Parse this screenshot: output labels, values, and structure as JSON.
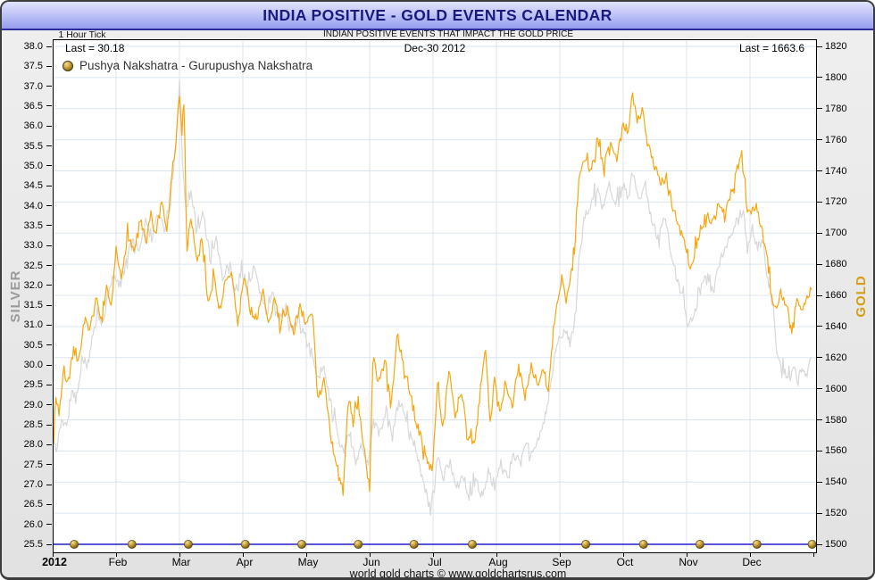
{
  "window": {
    "title": "INDIA POSITIVE - GOLD EVENTS CALENDAR"
  },
  "header": {
    "tick_interval": "1 Hour Tick",
    "subtitle": "INDIAN POSITIVE EVENTS THAT IMPACT THE GOLD PRICE"
  },
  "plot": {
    "silver_last": "Last = 30.18",
    "date_label": "Dec-30  2012",
    "gold_last": "Last = 1663.6"
  },
  "legend": {
    "label": "Pushya Nakshatra - Gurupushya Nakshatra",
    "marker": "gold-sphere"
  },
  "footer": {
    "credit": "world gold charts © www.goldchartsrus.com"
  },
  "colors": {
    "gold_line": "#f7a60d",
    "silver_line": "#d8d8d8",
    "baseline_blue": "#2121cc",
    "grid_horizontal": "#d9e6f2",
    "grid_vertical": "#dfe3ee",
    "title_text": "#19197e",
    "silver_axis_label": "#9a9a9a",
    "gold_axis_label": "#d69d12",
    "event_dot_fill": "#b68d2e"
  },
  "chart_data": {
    "type": "line",
    "title": "INDIA POSITIVE - GOLD EVENTS CALENDAR",
    "x_axis": {
      "unit": "months of 2012 (Jan=0 .. Dec end=12)",
      "labels": [
        "2012",
        "Feb",
        "Mar",
        "Apr",
        "May",
        "Jun",
        "Jul",
        "Aug",
        "Sep",
        "Oct",
        "Nov",
        "Dec"
      ],
      "range": [
        0,
        12
      ],
      "grid": true
    },
    "left_axis": {
      "title": "SILVER",
      "range": [
        25.5,
        38.0
      ],
      "tick_step": 0.5,
      "ticks": [
        "38.0",
        "37.5",
        "37.0",
        "36.5",
        "36.0",
        "35.5",
        "35.0",
        "34.5",
        "34.0",
        "33.5",
        "33.0",
        "32.5",
        "32.0",
        "31.5",
        "31.0",
        "30.5",
        "30.0",
        "29.5",
        "29.0",
        "28.5",
        "28.0",
        "27.5",
        "27.0",
        "26.5",
        "26.0",
        "25.5"
      ]
    },
    "right_axis": {
      "title": "GOLD",
      "range": [
        1500,
        1820
      ],
      "tick_step": 20,
      "ticks": [
        "1820",
        "1800",
        "1780",
        "1760",
        "1740",
        "1720",
        "1700",
        "1680",
        "1660",
        "1640",
        "1620",
        "1600",
        "1580",
        "1560",
        "1540",
        "1520",
        "1500"
      ],
      "gridlines_at_ticks": true
    },
    "series": [
      {
        "name": "Gold price (right axis, USD/oz)",
        "axis": "right",
        "last_value": 1663.6,
        "anchors": [
          [
            0,
            1563
          ],
          [
            0.05,
            1595
          ],
          [
            0.1,
            1585
          ],
          [
            0.18,
            1612
          ],
          [
            0.25,
            1600
          ],
          [
            0.33,
            1628
          ],
          [
            0.4,
            1615
          ],
          [
            0.5,
            1645
          ],
          [
            0.58,
            1635
          ],
          [
            0.68,
            1658
          ],
          [
            0.75,
            1645
          ],
          [
            0.85,
            1663
          ],
          [
            0.92,
            1650
          ],
          [
            1,
            1688
          ],
          [
            1.08,
            1670
          ],
          [
            1.18,
            1700
          ],
          [
            1.28,
            1688
          ],
          [
            1.38,
            1708
          ],
          [
            1.48,
            1693
          ],
          [
            1.55,
            1713
          ],
          [
            1.62,
            1698
          ],
          [
            1.72,
            1718
          ],
          [
            1.8,
            1700
          ],
          [
            1.88,
            1737
          ],
          [
            1.95,
            1762
          ],
          [
            2,
            1788
          ],
          [
            2.04,
            1764
          ],
          [
            2.07,
            1786
          ],
          [
            2.12,
            1690
          ],
          [
            2.18,
            1712
          ],
          [
            2.28,
            1680
          ],
          [
            2.35,
            1698
          ],
          [
            2.45,
            1657
          ],
          [
            2.55,
            1672
          ],
          [
            2.62,
            1649
          ],
          [
            2.72,
            1667
          ],
          [
            2.82,
            1675
          ],
          [
            2.92,
            1640
          ],
          [
            3.02,
            1674
          ],
          [
            3.12,
            1650
          ],
          [
            3.22,
            1644
          ],
          [
            3.32,
            1662
          ],
          [
            3.4,
            1640
          ],
          [
            3.5,
            1660
          ],
          [
            3.6,
            1638
          ],
          [
            3.7,
            1652
          ],
          [
            3.8,
            1636
          ],
          [
            3.9,
            1655
          ],
          [
            4,
            1640
          ],
          [
            4.1,
            1648
          ],
          [
            4.18,
            1594
          ],
          [
            4.28,
            1605
          ],
          [
            4.38,
            1570
          ],
          [
            4.48,
            1548
          ],
          [
            4.58,
            1534
          ],
          [
            4.66,
            1592
          ],
          [
            4.74,
            1578
          ],
          [
            4.82,
            1592
          ],
          [
            4.92,
            1558
          ],
          [
            5,
            1537
          ],
          [
            5.05,
            1619
          ],
          [
            5.15,
            1605
          ],
          [
            5.25,
            1618
          ],
          [
            5.33,
            1588
          ],
          [
            5.43,
            1630
          ],
          [
            5.53,
            1618
          ],
          [
            5.63,
            1598
          ],
          [
            5.73,
            1580
          ],
          [
            5.83,
            1565
          ],
          [
            5.93,
            1550
          ],
          [
            6,
            1552
          ],
          [
            6.07,
            1604
          ],
          [
            6.15,
            1577
          ],
          [
            6.25,
            1612
          ],
          [
            6.35,
            1580
          ],
          [
            6.45,
            1598
          ],
          [
            6.55,
            1568
          ],
          [
            6.65,
            1564
          ],
          [
            6.75,
            1600
          ],
          [
            6.83,
            1624
          ],
          [
            6.9,
            1580
          ],
          [
            6.97,
            1604
          ],
          [
            7.05,
            1584
          ],
          [
            7.15,
            1600
          ],
          [
            7.25,
            1590
          ],
          [
            7.35,
            1613
          ],
          [
            7.45,
            1596
          ],
          [
            7.55,
            1615
          ],
          [
            7.65,
            1602
          ],
          [
            7.75,
            1612
          ],
          [
            7.82,
            1598
          ],
          [
            7.9,
            1638
          ],
          [
            7.97,
            1658
          ],
          [
            8.03,
            1672
          ],
          [
            8.1,
            1656
          ],
          [
            8.17,
            1670
          ],
          [
            8.23,
            1688
          ],
          [
            8.3,
            1736
          ],
          [
            8.4,
            1748
          ],
          [
            8.5,
            1740
          ],
          [
            8.6,
            1757
          ],
          [
            8.7,
            1743
          ],
          [
            8.8,
            1760
          ],
          [
            8.9,
            1748
          ],
          [
            9,
            1770
          ],
          [
            9.08,
            1765
          ],
          [
            9.15,
            1790
          ],
          [
            9.22,
            1770
          ],
          [
            9.3,
            1780
          ],
          [
            9.38,
            1762
          ],
          [
            9.48,
            1744
          ],
          [
            9.58,
            1733
          ],
          [
            9.68,
            1738
          ],
          [
            9.75,
            1722
          ],
          [
            9.85,
            1708
          ],
          [
            9.92,
            1700
          ],
          [
            10,
            1690
          ],
          [
            10.06,
            1676
          ],
          [
            10.14,
            1690
          ],
          [
            10.22,
            1702
          ],
          [
            10.32,
            1712
          ],
          [
            10.42,
            1706
          ],
          [
            10.52,
            1720
          ],
          [
            10.6,
            1710
          ],
          [
            10.7,
            1725
          ],
          [
            10.8,
            1742
          ],
          [
            10.87,
            1750
          ],
          [
            10.94,
            1720
          ],
          [
            11.02,
            1712
          ],
          [
            11.1,
            1720
          ],
          [
            11.18,
            1702
          ],
          [
            11.26,
            1688
          ],
          [
            11.34,
            1658
          ],
          [
            11.42,
            1655
          ],
          [
            11.5,
            1662
          ],
          [
            11.58,
            1652
          ],
          [
            11.66,
            1636
          ],
          [
            11.74,
            1657
          ],
          [
            11.82,
            1650
          ],
          [
            11.9,
            1660
          ],
          [
            11.97,
            1663.6
          ]
        ]
      },
      {
        "name": "Silver price (left axis, USD/oz)",
        "axis": "left",
        "last_value": 30.18,
        "anchors": [
          [
            0,
            28.2
          ],
          [
            0.06,
            27.8
          ],
          [
            0.14,
            28.7
          ],
          [
            0.22,
            28.4
          ],
          [
            0.3,
            29.4
          ],
          [
            0.38,
            29.1
          ],
          [
            0.46,
            30.2
          ],
          [
            0.54,
            29.9
          ],
          [
            0.62,
            30.6
          ],
          [
            0.72,
            31.3
          ],
          [
            0.8,
            31.0
          ],
          [
            0.88,
            31.8
          ],
          [
            0.96,
            32.3
          ],
          [
            1.06,
            32.0
          ],
          [
            1.16,
            32.6
          ],
          [
            1.26,
            33.2
          ],
          [
            1.36,
            32.9
          ],
          [
            1.46,
            33.6
          ],
          [
            1.56,
            33.2
          ],
          [
            1.66,
            33.8
          ],
          [
            1.76,
            33.4
          ],
          [
            1.86,
            34.1
          ],
          [
            1.93,
            35.2
          ],
          [
            2,
            37.05
          ],
          [
            2.05,
            35.0
          ],
          [
            2.1,
            34.0
          ],
          [
            2.18,
            34.3
          ],
          [
            2.28,
            33.4
          ],
          [
            2.38,
            33.8
          ],
          [
            2.48,
            32.7
          ],
          [
            2.58,
            33.1
          ],
          [
            2.68,
            32.2
          ],
          [
            2.78,
            32.6
          ],
          [
            2.88,
            31.8
          ],
          [
            2.98,
            32.4
          ],
          [
            3.08,
            32.0
          ],
          [
            3.18,
            32.5
          ],
          [
            3.28,
            31.7
          ],
          [
            3.38,
            31.3
          ],
          [
            3.48,
            31.8
          ],
          [
            3.58,
            31.1
          ],
          [
            3.68,
            31.5
          ],
          [
            3.78,
            30.8
          ],
          [
            3.88,
            31.2
          ],
          [
            3.98,
            30.7
          ],
          [
            4.08,
            30.3
          ],
          [
            4.18,
            29.7
          ],
          [
            4.28,
            30.0
          ],
          [
            4.38,
            29.1
          ],
          [
            4.48,
            28.4
          ],
          [
            4.58,
            27.8
          ],
          [
            4.68,
            28.3
          ],
          [
            4.78,
            27.6
          ],
          [
            4.88,
            28.0
          ],
          [
            4.98,
            27.5
          ],
          [
            5.06,
            28.6
          ],
          [
            5.16,
            28.3
          ],
          [
            5.26,
            28.9
          ],
          [
            5.36,
            28.2
          ],
          [
            5.46,
            29.1
          ],
          [
            5.56,
            28.7
          ],
          [
            5.66,
            28.2
          ],
          [
            5.76,
            27.6
          ],
          [
            5.86,
            27.0
          ],
          [
            5.96,
            26.3
          ],
          [
            6.07,
            27.7
          ],
          [
            6.17,
            27.2
          ],
          [
            6.27,
            27.6
          ],
          [
            6.37,
            26.9
          ],
          [
            6.47,
            27.3
          ],
          [
            6.57,
            26.7
          ],
          [
            6.67,
            27.1
          ],
          [
            6.77,
            26.7
          ],
          [
            6.87,
            27.3
          ],
          [
            6.97,
            27.0
          ],
          [
            7.07,
            27.5
          ],
          [
            7.17,
            27.2
          ],
          [
            7.27,
            27.8
          ],
          [
            7.37,
            27.5
          ],
          [
            7.47,
            28.0
          ],
          [
            7.57,
            27.7
          ],
          [
            7.67,
            28.2
          ],
          [
            7.77,
            28.7
          ],
          [
            7.85,
            29.4
          ],
          [
            7.92,
            30.3
          ],
          [
            8,
            30.7
          ],
          [
            8.08,
            30.9
          ],
          [
            8.16,
            30.5
          ],
          [
            8.24,
            31.1
          ],
          [
            8.3,
            32.6
          ],
          [
            8.38,
            33.8
          ],
          [
            8.48,
            33.9
          ],
          [
            8.58,
            34.4
          ],
          [
            8.68,
            33.9
          ],
          [
            8.78,
            34.5
          ],
          [
            8.88,
            34.0
          ],
          [
            8.98,
            34.6
          ],
          [
            9.08,
            34.2
          ],
          [
            9.15,
            34.85
          ],
          [
            9.25,
            34.2
          ],
          [
            9.35,
            34.5
          ],
          [
            9.45,
            33.7
          ],
          [
            9.55,
            33.2
          ],
          [
            9.65,
            33.7
          ],
          [
            9.75,
            32.9
          ],
          [
            9.85,
            32.1
          ],
          [
            9.95,
            31.7
          ],
          [
            10.02,
            31.0
          ],
          [
            10.1,
            31.2
          ],
          [
            10.2,
            31.8
          ],
          [
            10.3,
            32.2
          ],
          [
            10.4,
            31.9
          ],
          [
            10.5,
            32.5
          ],
          [
            10.6,
            32.9
          ],
          [
            10.7,
            33.3
          ],
          [
            10.8,
            33.6
          ],
          [
            10.88,
            33.9
          ],
          [
            10.96,
            33.1
          ],
          [
            11.04,
            33.4
          ],
          [
            11.12,
            32.9
          ],
          [
            11.2,
            33.2
          ],
          [
            11.28,
            32.1
          ],
          [
            11.36,
            31.5
          ],
          [
            11.44,
            30.1
          ],
          [
            11.52,
            29.9
          ],
          [
            11.6,
            29.6
          ],
          [
            11.68,
            29.9
          ],
          [
            11.76,
            29.6
          ],
          [
            11.84,
            30.0
          ],
          [
            11.9,
            29.7
          ],
          [
            11.97,
            30.18
          ]
        ]
      }
    ],
    "events": {
      "name": "Pushya Nakshatra - Gurupushya Nakshatra",
      "marker": "gold-sphere",
      "baseline_value_left_axis": 25.5,
      "marker_positions_months": [
        0.34,
        1.25,
        2.14,
        3.04,
        3.93,
        4.82,
        5.7,
        6.62,
        8.41,
        9.32,
        10.21,
        11.11,
        11.98
      ]
    },
    "baseline": {
      "value_left_axis": 25.5,
      "style": "solid blue horizontal line"
    },
    "legend_position": "top-left",
    "grid": true
  }
}
